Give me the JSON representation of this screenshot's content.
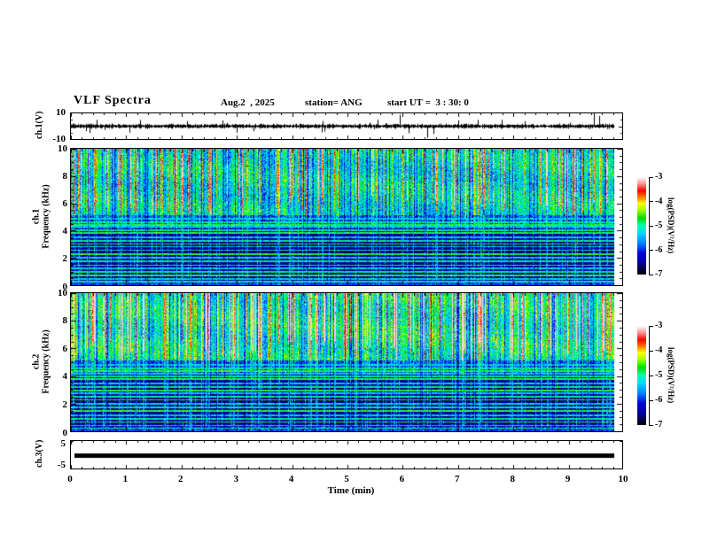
{
  "header": {
    "title": "VLF Spectra",
    "date": "Aug.2  , 2025",
    "station": "station= ANG",
    "start_ut": "start UT =  3 : 30: 0"
  },
  "axes": {
    "x": {
      "label": "Time (min)",
      "ticks": [
        0,
        1,
        2,
        3,
        4,
        5,
        6,
        7,
        8,
        9,
        10
      ],
      "lim": [
        0,
        10
      ],
      "minor_per_major": 5
    },
    "ch1_wave": {
      "label": "ch.1(V)",
      "tick_labels": [
        "10",
        "-10"
      ],
      "lim": [
        -10,
        10
      ]
    },
    "spec1": {
      "label_line1": "ch.1",
      "label_line2": "Frequency (kHz)",
      "ticks": [
        0,
        2,
        4,
        6,
        8,
        10
      ],
      "lim": [
        0,
        10
      ],
      "minor_step_khz": 0.5
    },
    "spec2": {
      "label_line1": "ch.2",
      "label_line2": "Frequency (kHz)",
      "ticks": [
        0,
        2,
        4,
        6,
        8,
        10
      ],
      "lim": [
        0,
        10
      ],
      "minor_step_khz": 0.5
    },
    "ch3": {
      "label": "ch.3(V)",
      "tick_labels": [
        "5",
        "-5"
      ],
      "lim": [
        -5,
        5
      ]
    }
  },
  "colorbar": {
    "label": "log(PSD)(V²/Hz)",
    "ticks": [
      "-3",
      "-4",
      "-5",
      "-6",
      "-7"
    ],
    "lim": [
      -7,
      -3
    ]
  },
  "colors": {
    "axis": "#000000",
    "background": "#ffffff",
    "colormap_stops": [
      [
        "0.00",
        "#000000"
      ],
      [
        "0.10",
        "#000080"
      ],
      [
        "0.22",
        "#0000e0"
      ],
      [
        "0.32",
        "#0080ff"
      ],
      [
        "0.42",
        "#00d8ff"
      ],
      [
        "0.50",
        "#00ffb0"
      ],
      [
        "0.58",
        "#00dc00"
      ],
      [
        "0.66",
        "#a0ff00"
      ],
      [
        "0.73",
        "#ffff00"
      ],
      [
        "0.79",
        "#ff8000"
      ],
      [
        "0.86",
        "#ff0000"
      ],
      [
        "0.93",
        "#ff9090"
      ],
      [
        "1.00",
        "#ffffff"
      ]
    ]
  },
  "chart_data": [
    {
      "type": "line",
      "name": "ch1_waveform",
      "ylabel": "ch.1(V)",
      "ylim": [
        -10,
        10
      ],
      "xlim_min": [
        0,
        10
      ],
      "data_end_min": 9.84,
      "character": "zero-mean broadband noise, envelope about ±1.5 V, impulsive sferic spikes",
      "notable_spikes_min_volts": [
        [
          0.46,
          5
        ],
        [
          1.05,
          -5
        ],
        [
          2.1,
          4
        ],
        [
          3.0,
          -5
        ],
        [
          4.55,
          4
        ],
        [
          5.55,
          5
        ],
        [
          5.95,
          9
        ],
        [
          6.1,
          -5.5
        ],
        [
          6.45,
          -9
        ],
        [
          6.55,
          -6
        ],
        [
          7.35,
          5
        ],
        [
          8.2,
          4
        ],
        [
          9.45,
          10
        ],
        [
          9.55,
          8
        ]
      ]
    },
    {
      "type": "heatmap",
      "name": "ch1_spectrogram",
      "ylabel": "ch.1 Frequency (kHz)",
      "ylim_khz": [
        0,
        10
      ],
      "xlim_min": [
        0,
        10
      ],
      "colorbar_lim_logpsd": [
        -7,
        -3
      ],
      "description": "VLF spectrogram: strong broadband sferic activity above ~5 kHz (green/yellow with red and dark-blue vertical streaks), weak power below ~4.2 kHz (dark blue/black) crossed by narrowband horizontal emission lines and thin vertical impulse streaks; brighter noise band below 0.4 kHz",
      "line_frequencies_khz": [
        4.9,
        4.65,
        4.45,
        4.3,
        4.05,
        3.85,
        3.55,
        3.3,
        3.05,
        2.85,
        2.6,
        2.3,
        2.05,
        1.8,
        1.5,
        1.25,
        1.0,
        0.75,
        0.5,
        0.3
      ],
      "top_band_level": 0.55,
      "streak_extra": 0.45,
      "strong_threshold": 0.8
    },
    {
      "type": "heatmap",
      "name": "ch2_spectrogram",
      "ylabel": "ch.2 Frequency (kHz)",
      "ylim_khz": [
        0,
        10
      ],
      "xlim_min": [
        0,
        10
      ],
      "colorbar_lim_logpsd": [
        -7,
        -3
      ],
      "description": "same as ch.1 but hotter: broad orange/red streaks above ~5.5 kHz on green background; dark region below ~4.5 kHz with horizontal lines; bright blue/cyan band near 0-0.7 kHz",
      "line_frequencies_khz": [
        4.85,
        4.6,
        4.4,
        4.2,
        4.0,
        3.8,
        3.5,
        3.25,
        3.0,
        2.8,
        2.55,
        2.3,
        2.0,
        1.75,
        1.5,
        1.2,
        0.95,
        0.7,
        0.45,
        0.25
      ],
      "top_band_level": 0.6,
      "streak_extra": 0.8,
      "strong_threshold": 0.74
    },
    {
      "type": "line",
      "name": "ch3_waveform",
      "ylabel": "ch.3(V)",
      "ylim": [
        -5,
        5
      ],
      "xlim_min": [
        0,
        10
      ],
      "data_end_min": 9.84,
      "values_v": 0,
      "character": "constant flat thick line at 0 V"
    }
  ]
}
